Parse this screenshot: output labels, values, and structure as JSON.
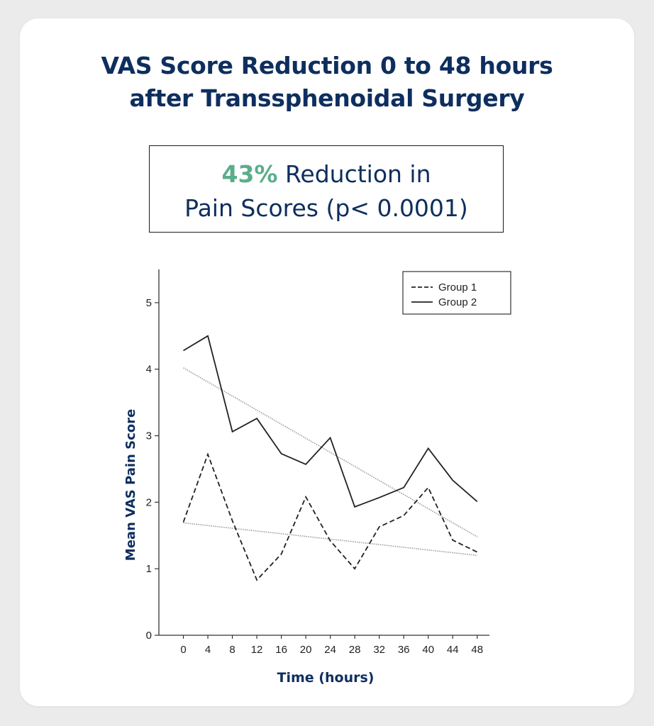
{
  "title_line1": "VAS Score Reduction 0 to 48 hours",
  "title_line2": "after Transsphenoidal Surgery",
  "callout": {
    "percent": "43%",
    "text_line1": " Reduction in",
    "text_line2": "Pain Scores (p< 0.0001)"
  },
  "colors": {
    "title": "#0e2e5e",
    "accent": "#5aae8a",
    "lines": "#222222",
    "trend": "#9a9a9a"
  },
  "chart_data": {
    "type": "line",
    "xlabel": "Time (hours)",
    "ylabel": "Mean VAS Pain Score",
    "x": [
      0,
      4,
      8,
      12,
      16,
      20,
      24,
      28,
      32,
      36,
      40,
      44,
      48
    ],
    "xticks": [
      "0",
      "4",
      "8",
      "12",
      "16",
      "20",
      "24",
      "28",
      "32",
      "36",
      "40",
      "44",
      "48"
    ],
    "yticks": [
      "0",
      "1",
      "2",
      "3",
      "4",
      "5"
    ],
    "ylim": [
      0,
      5.5
    ],
    "xlim": [
      -4,
      50
    ],
    "legend_position": "top-right",
    "series": [
      {
        "name": "Group 1",
        "style": "dashed",
        "values": [
          1.7,
          2.72,
          1.72,
          0.83,
          1.22,
          2.08,
          1.42,
          1.0,
          1.63,
          1.8,
          2.22,
          1.43,
          1.25
        ]
      },
      {
        "name": "Group 2",
        "style": "solid",
        "values": [
          4.28,
          4.5,
          3.06,
          3.26,
          2.73,
          2.57,
          2.97,
          1.93,
          2.07,
          2.22,
          2.81,
          2.33,
          2.01
        ]
      }
    ],
    "trendlines": [
      {
        "series": "Group 1",
        "start": [
          0,
          1.69
        ],
        "end": [
          48,
          1.2
        ]
      },
      {
        "series": "Group 2",
        "start": [
          0,
          4.02
        ],
        "end": [
          48,
          1.48
        ]
      }
    ]
  }
}
